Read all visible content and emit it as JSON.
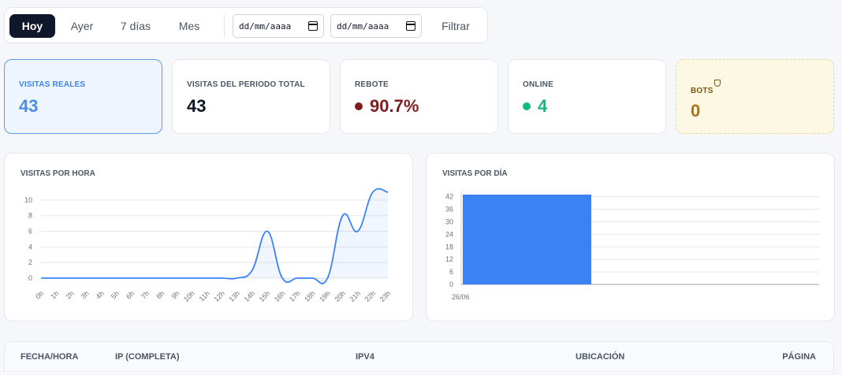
{
  "filters": {
    "ranges": [
      "Hoy",
      "Ayer",
      "7 días",
      "Mes"
    ],
    "active_range": "Hoy",
    "date_from_placeholder": "dd/mm/aaaa",
    "date_to_placeholder": "dd/mm/aaaa",
    "filter_label": "Filtrar"
  },
  "stats": {
    "real_visits": {
      "label": "VISITAS REALES",
      "value": "43"
    },
    "total_visits": {
      "label": "VISITAS DEL PERIODO TOTAL",
      "value": "43"
    },
    "bounce": {
      "label": "REBOTE",
      "value": "90.7%",
      "color": "#7f1d1d"
    },
    "online": {
      "label": "ONLINE",
      "value": "4",
      "color": "#10b981"
    },
    "bots": {
      "label": "BOTS",
      "value": "0",
      "icon": "shield-icon"
    }
  },
  "hourly_chart": {
    "title": "VISITAS POR HORA"
  },
  "daily_chart": {
    "title": "VISITAS POR DÍA"
  },
  "chart_data": [
    {
      "type": "area",
      "title": "VISITAS POR HORA",
      "categories": [
        "0h",
        "1h",
        "2h",
        "3h",
        "4h",
        "5h",
        "6h",
        "7h",
        "8h",
        "9h",
        "10h",
        "11h",
        "12h",
        "13h",
        "14h",
        "15h",
        "16h",
        "17h",
        "18h",
        "19h",
        "20h",
        "21h",
        "22h",
        "23h"
      ],
      "values": [
        0,
        0,
        0,
        0,
        0,
        0,
        0,
        0,
        0,
        0,
        0,
        0,
        0,
        0,
        1,
        6,
        0,
        0,
        0,
        0,
        8,
        6,
        11,
        11
      ],
      "yticks": [
        0,
        2,
        4,
        6,
        8,
        10
      ],
      "ylim": [
        0,
        11
      ],
      "color": "#3b82f6",
      "grid": true
    },
    {
      "type": "bar",
      "title": "VISITAS POR DÍA",
      "categories": [
        "26/06"
      ],
      "values": [
        43
      ],
      "yticks": [
        0,
        6,
        12,
        18,
        24,
        30,
        36,
        42
      ],
      "ylim": [
        0,
        43
      ],
      "color": "#3b82f6",
      "grid": true
    }
  ],
  "table": {
    "columns": [
      "FECHA/HORA",
      "IP (COMPLETA)",
      "IPV4",
      "UBICACIÓN",
      "PÁGINA"
    ]
  }
}
